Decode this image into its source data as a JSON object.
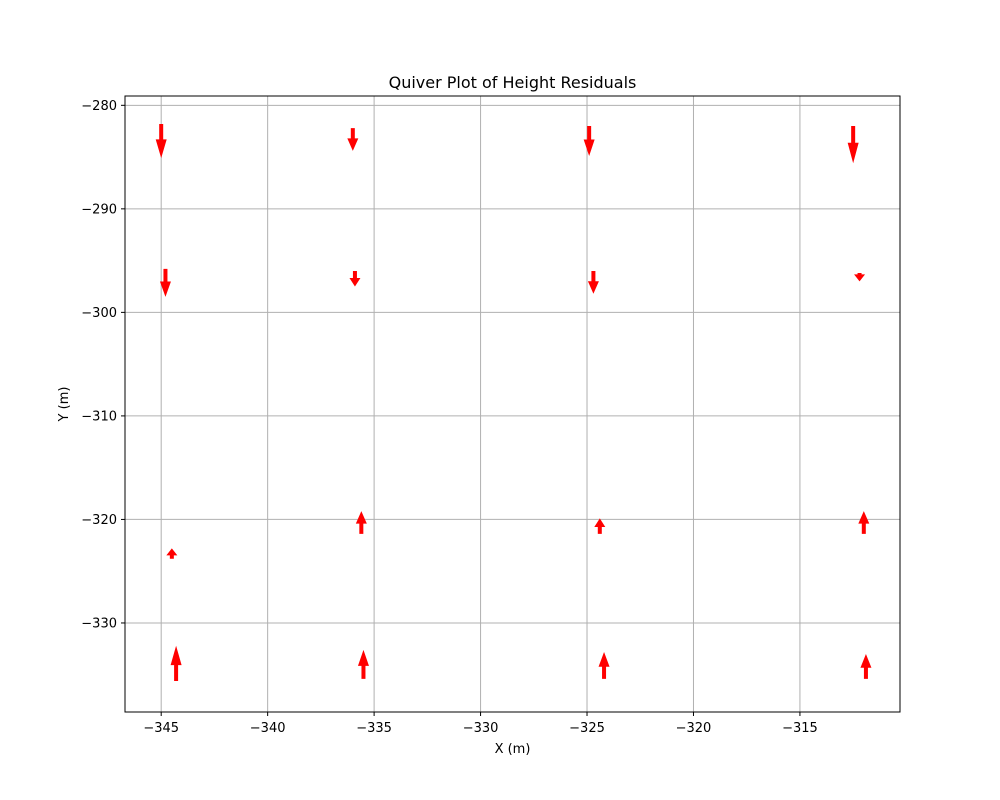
{
  "chart_data": {
    "type": "quiver",
    "title": "Quiver Plot of Height Residuals",
    "xlabel": "X (m)",
    "ylabel": "Y (m)",
    "xlim": [
      -346.7,
      -310.3
    ],
    "ylim": [
      -338.6,
      -279.1
    ],
    "xticks": [
      -345,
      -340,
      -335,
      -330,
      -325,
      -320,
      -315
    ],
    "yticks": [
      -280,
      -290,
      -300,
      -310,
      -320,
      -330
    ],
    "xtick_labels": [
      "−345",
      "−340",
      "−335",
      "−330",
      "−325",
      "−320",
      "−315"
    ],
    "ytick_labels": [
      "−280",
      "−290",
      "−300",
      "−310",
      "−320",
      "−330"
    ],
    "grid": true,
    "arrow_color": "#ff0000",
    "vectors": [
      {
        "x": -345.0,
        "y": -281.8,
        "dy": -3.3
      },
      {
        "x": -336.0,
        "y": -282.2,
        "dy": -2.2
      },
      {
        "x": -324.9,
        "y": -282.0,
        "dy": -2.9
      },
      {
        "x": -312.5,
        "y": -282.0,
        "dy": -3.6
      },
      {
        "x": -344.8,
        "y": -295.8,
        "dy": -2.7
      },
      {
        "x": -335.9,
        "y": -296.0,
        "dy": -1.5
      },
      {
        "x": -324.7,
        "y": -296.0,
        "dy": -2.2
      },
      {
        "x": -312.2,
        "y": -296.2,
        "dy": -0.8
      },
      {
        "x": -344.5,
        "y": -323.8,
        "dy": 1.0
      },
      {
        "x": -335.6,
        "y": -321.4,
        "dy": 2.2
      },
      {
        "x": -324.4,
        "y": -321.4,
        "dy": 1.5
      },
      {
        "x": -312.0,
        "y": -321.4,
        "dy": 2.2
      },
      {
        "x": -344.3,
        "y": -335.6,
        "dy": 3.4
      },
      {
        "x": -335.5,
        "y": -335.4,
        "dy": 2.8
      },
      {
        "x": -324.2,
        "y": -335.4,
        "dy": 2.6
      },
      {
        "x": -311.9,
        "y": -335.4,
        "dy": 2.4
      }
    ]
  }
}
